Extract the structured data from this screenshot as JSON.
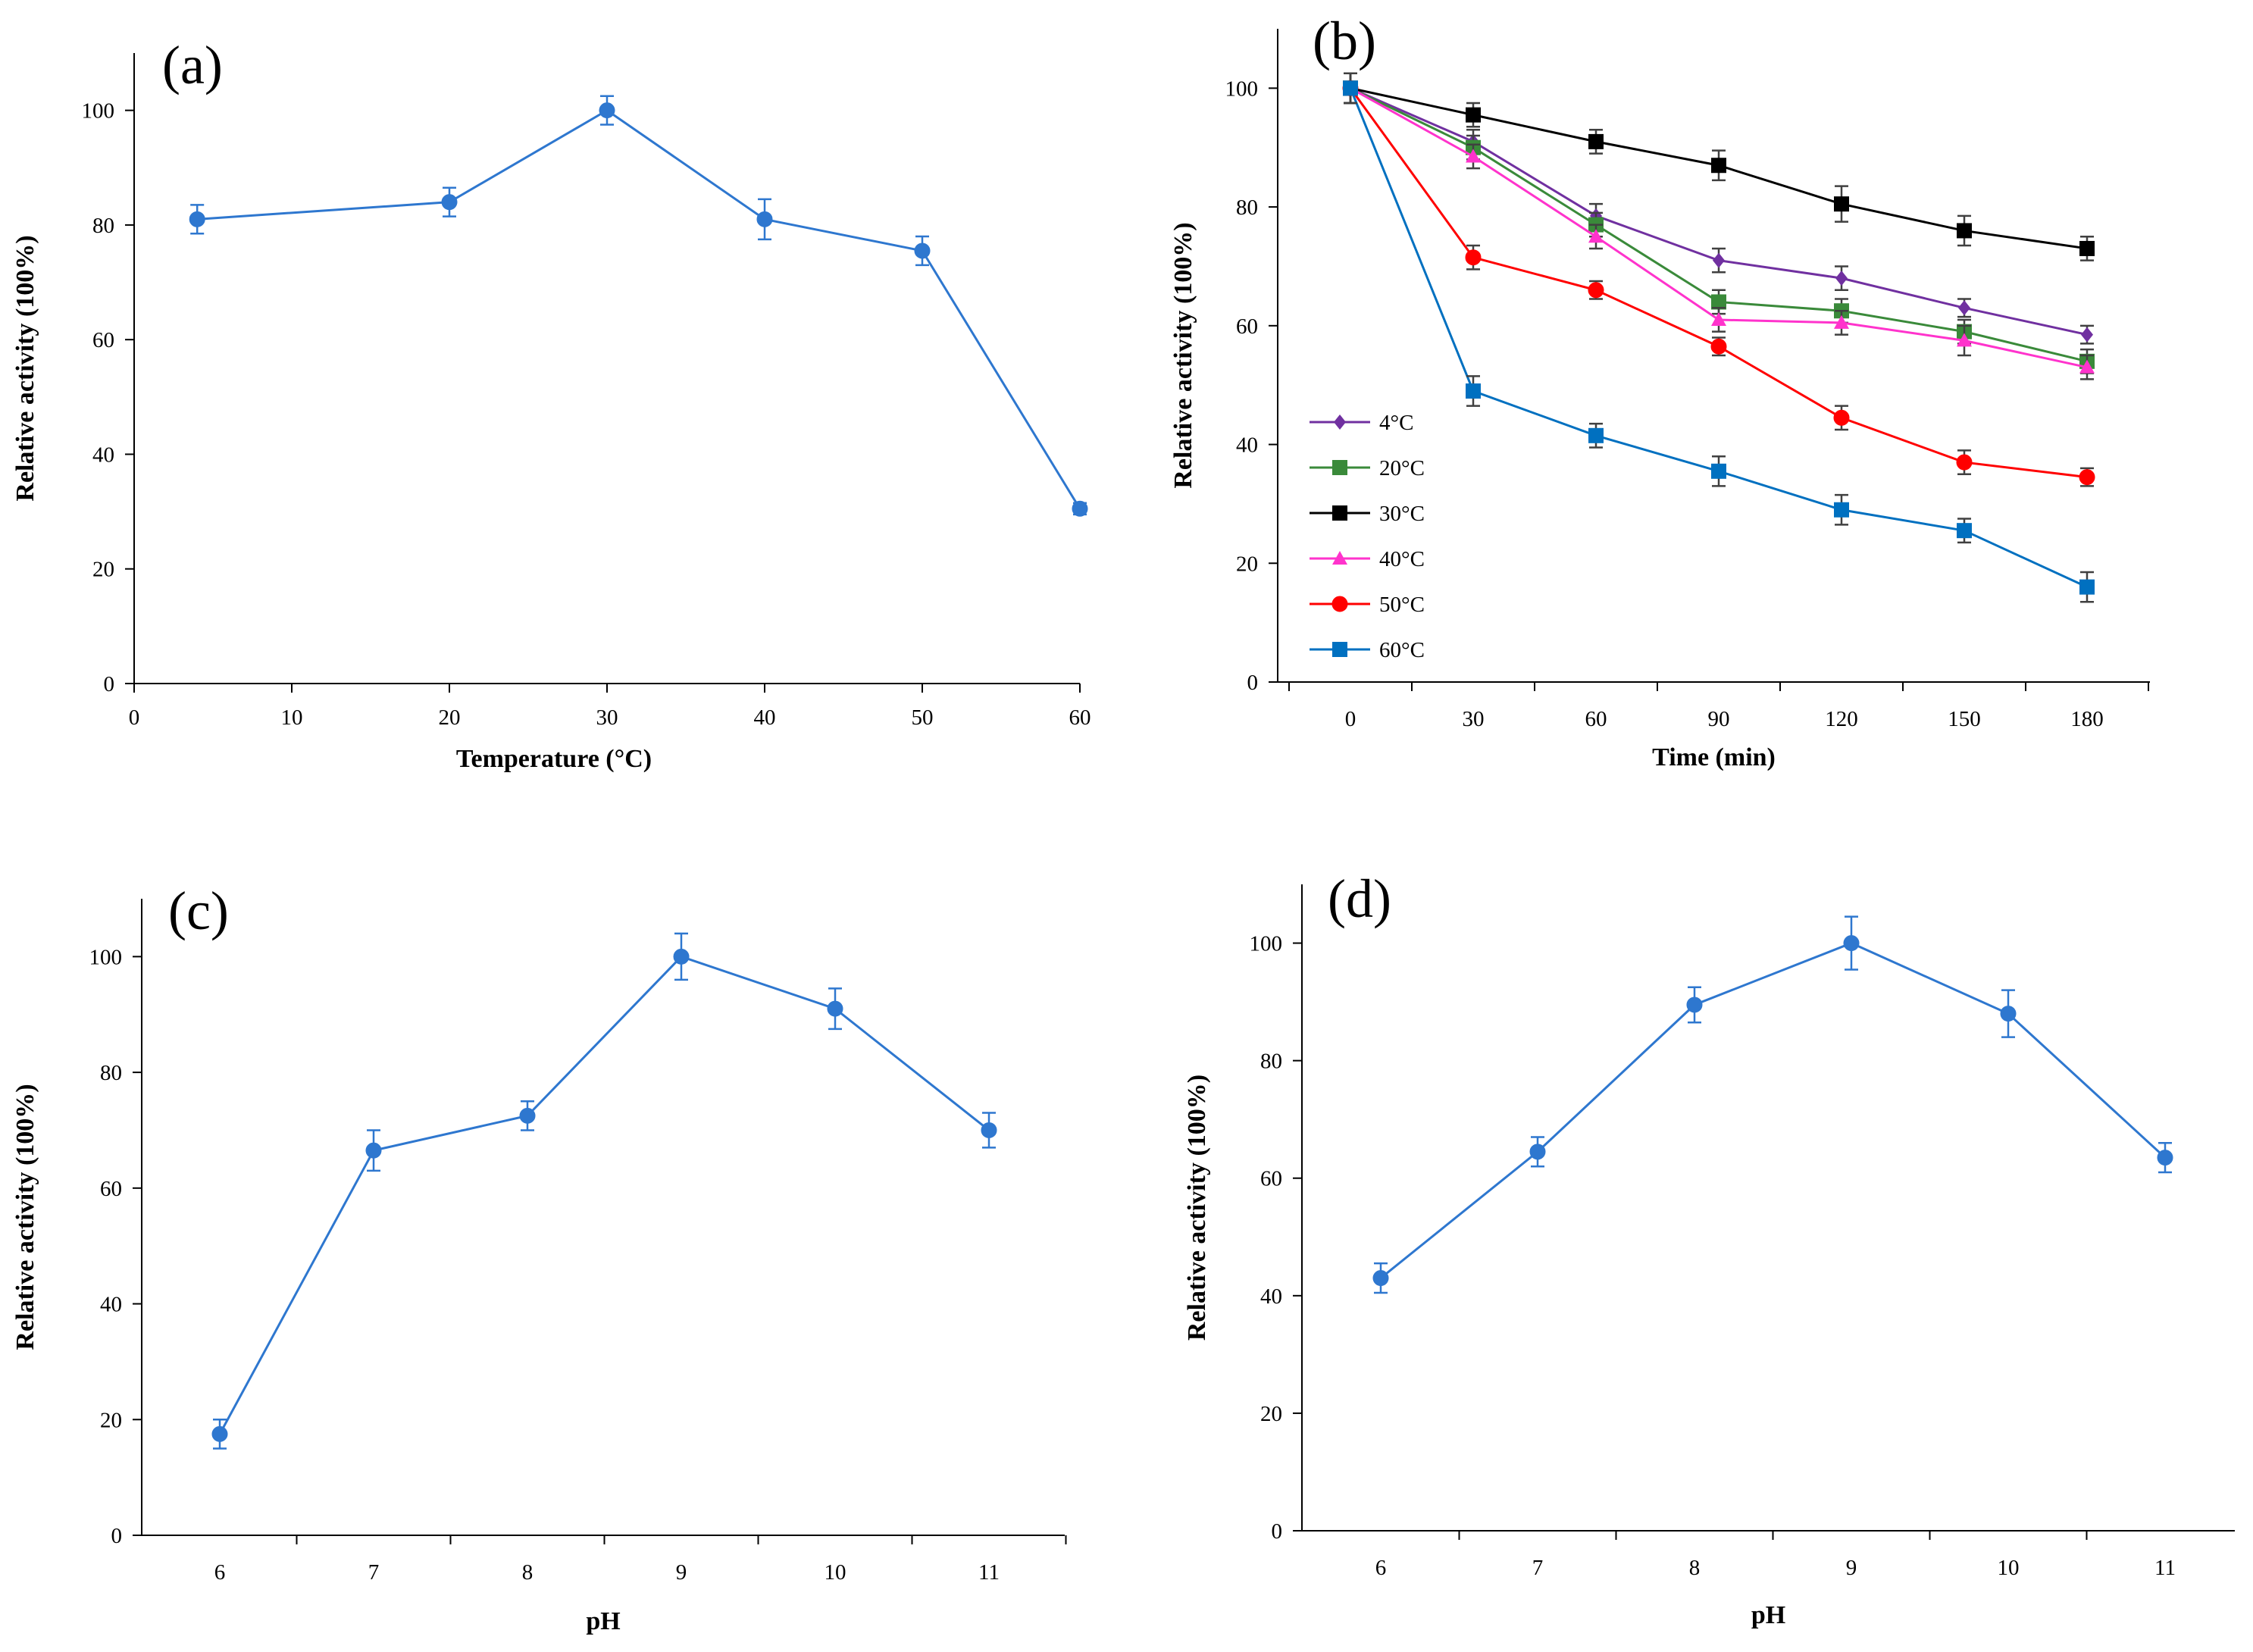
{
  "chart_data": [
    {
      "id": "a",
      "panel_label": "(a)",
      "type": "line",
      "xlabel": "Temperature (°C)",
      "ylabel": "Relative activity (100%)",
      "xlim": [
        0,
        60
      ],
      "ylim": [
        0,
        110
      ],
      "x_ticks": [
        0,
        10,
        20,
        30,
        40,
        50,
        60
      ],
      "y_ticks": [
        0,
        20,
        40,
        60,
        80,
        100
      ],
      "grid": false,
      "series": [
        {
          "name": "Activity",
          "color": "#2e77cf",
          "marker": "circle",
          "x": [
            4,
            20,
            30,
            40,
            50,
            60
          ],
          "values": [
            81,
            84,
            100,
            81,
            75.5,
            30.5
          ],
          "errors": [
            2.5,
            2.5,
            2.5,
            3.5,
            2.5,
            1.0
          ]
        }
      ]
    },
    {
      "id": "b",
      "panel_label": "(b)",
      "type": "line",
      "xlabel": "Time (min)",
      "ylabel": "Relative activity (100%)",
      "xlim": [
        0,
        180
      ],
      "ylim": [
        0,
        110
      ],
      "categories": [
        "0",
        "30",
        "60",
        "90",
        "120",
        "150",
        "180"
      ],
      "y_ticks": [
        0,
        20,
        40,
        60,
        80,
        100
      ],
      "grid": false,
      "legend_position": "middle-left",
      "series": [
        {
          "name": "4°C",
          "color": "#7030a0",
          "marker": "diamond",
          "values": [
            100,
            91,
            78.5,
            71,
            68,
            63,
            58.5
          ],
          "errors": [
            2.5,
            2,
            2,
            2,
            2,
            1.5,
            1.5
          ]
        },
        {
          "name": "20°C",
          "color": "#3a8a3a",
          "marker": "square",
          "values": [
            100,
            90,
            77,
            64,
            62.5,
            59,
            54
          ],
          "errors": [
            2.5,
            2,
            2,
            2,
            2,
            2,
            2
          ]
        },
        {
          "name": "30°C",
          "color": "#000000",
          "marker": "square",
          "values": [
            100,
            95.5,
            91,
            87,
            80.5,
            76,
            73
          ],
          "errors": [
            2.5,
            2,
            2,
            2.5,
            3,
            2.5,
            2
          ]
        },
        {
          "name": "40°C",
          "color": "#ff33cc",
          "marker": "triangle",
          "values": [
            100,
            88.5,
            75,
            61,
            60.5,
            57.5,
            53
          ],
          "errors": [
            2.5,
            2,
            2,
            2,
            2,
            2.5,
            2
          ]
        },
        {
          "name": "50°C",
          "color": "#ff0000",
          "marker": "circle",
          "values": [
            100,
            71.5,
            66,
            56.5,
            44.5,
            37,
            34.5
          ],
          "errors": [
            2.5,
            2,
            1.5,
            1.5,
            2,
            2,
            1.5
          ]
        },
        {
          "name": "60°C",
          "color": "#0070c0",
          "marker": "square",
          "values": [
            100,
            49,
            41.5,
            35.5,
            29,
            25.5,
            16
          ],
          "errors": [
            2.5,
            2.5,
            2,
            2.5,
            2.5,
            2,
            2.5
          ]
        }
      ]
    },
    {
      "id": "c",
      "panel_label": "(c)",
      "type": "line",
      "xlabel": "pH",
      "ylabel": "Relative activity (100%)",
      "xlim": [
        5.5,
        11.5
      ],
      "ylim": [
        0,
        110
      ],
      "categories": [
        "6",
        "7",
        "8",
        "9",
        "10",
        "11"
      ],
      "y_ticks": [
        0,
        20,
        40,
        60,
        80,
        100
      ],
      "grid": false,
      "series": [
        {
          "name": "Activity",
          "color": "#2e77cf",
          "marker": "circle",
          "values": [
            17.5,
            66.5,
            72.5,
            100,
            91,
            70
          ],
          "errors": [
            2.5,
            3.5,
            2.5,
            4,
            3.5,
            3
          ]
        }
      ]
    },
    {
      "id": "d",
      "panel_label": "(d)",
      "type": "line",
      "xlabel": "pH",
      "ylabel": "Relative activity (100%)",
      "xlim": [
        5.5,
        11.5
      ],
      "ylim": [
        0,
        110
      ],
      "categories": [
        "6",
        "7",
        "8",
        "9",
        "10",
        "11"
      ],
      "y_ticks": [
        0,
        20,
        40,
        60,
        80,
        100
      ],
      "grid": false,
      "series": [
        {
          "name": "Activity",
          "color": "#2e77cf",
          "marker": "circle",
          "values": [
            43,
            64.5,
            89.5,
            100,
            88,
            63.5
          ],
          "errors": [
            2.5,
            2.5,
            3,
            4.5,
            4,
            2.5
          ]
        }
      ]
    }
  ]
}
